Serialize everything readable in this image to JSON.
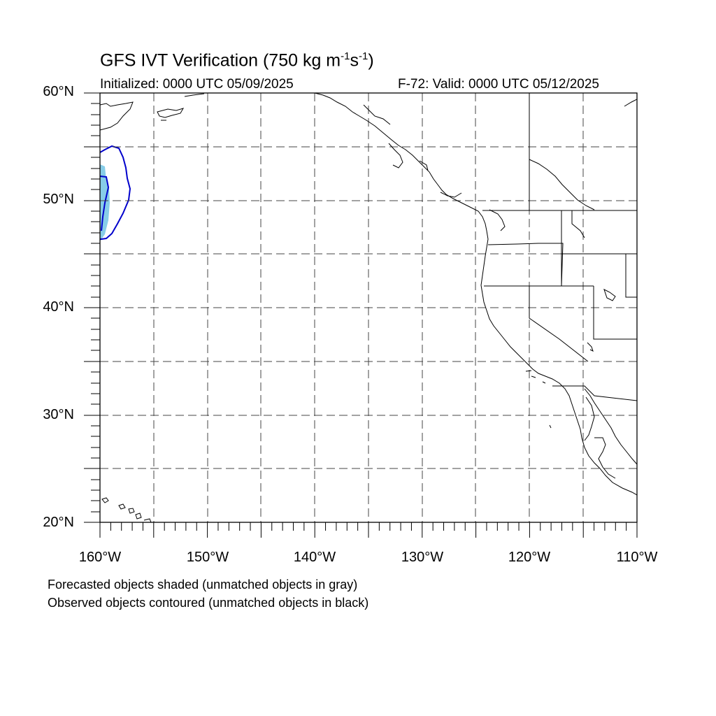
{
  "title": {
    "main": "GFS IVT Verification (750 kg m",
    "sup1": "-1",
    "mid": "s",
    "sup2": "-1",
    "end": ")"
  },
  "initialized": "Initialized: 0000 UTC 05/09/2025",
  "valid": "F-72: Valid: 0000 UTC 05/12/2025",
  "lat_labels": [
    "60°N",
    "50°N",
    "40°N",
    "30°N",
    "20°N"
  ],
  "lon_labels": [
    "160°W",
    "150°W",
    "140°W",
    "130°W",
    "120°W",
    "110°W"
  ],
  "footnotes": [
    "Forecasted objects shaded (unmatched objects in gray)",
    "Observed objects contoured (unmatched objects in black)"
  ],
  "map_extent": {
    "lon": [
      -160,
      -110
    ],
    "lat": [
      20,
      60
    ]
  },
  "colors": {
    "forecast_fill": "#87cde8",
    "observed_contour": "#0000cc",
    "coastline": "#000000",
    "grid": "#444444"
  }
}
